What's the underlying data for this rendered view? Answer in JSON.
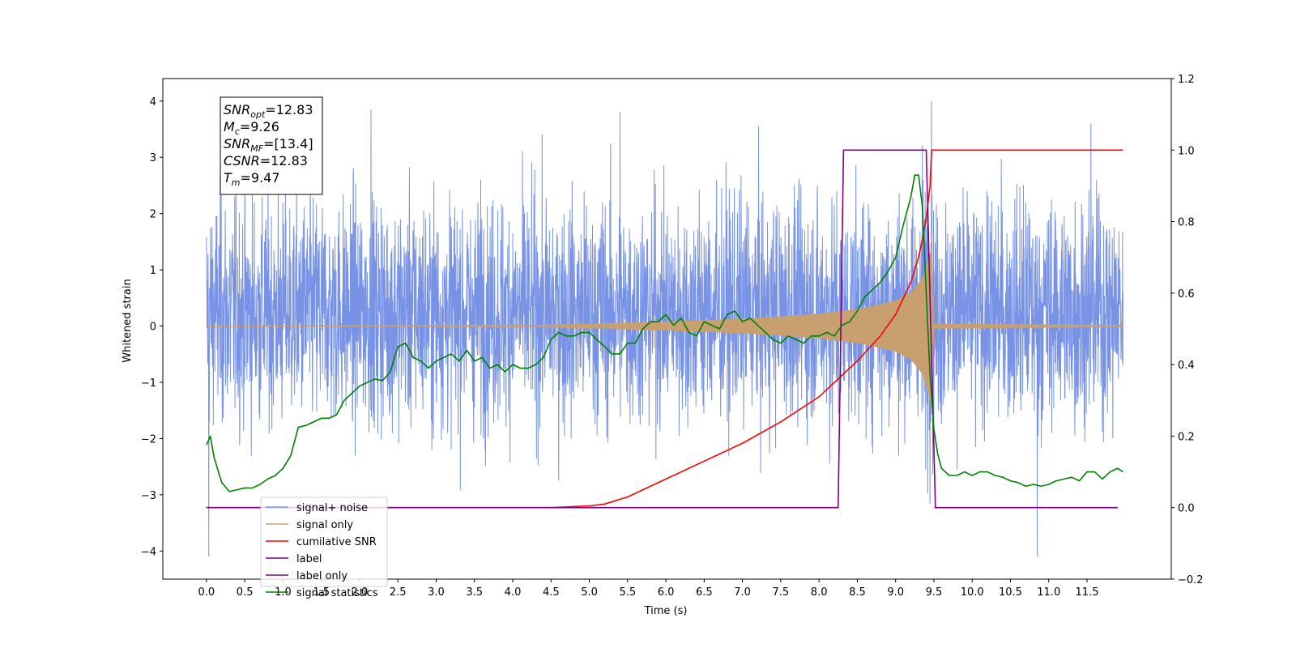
{
  "chart_data": {
    "type": "line",
    "xlabel": "Time (s)",
    "ylabel": "Whitened strain",
    "xlim": [
      -0.57,
      12.6
    ],
    "ylim": [
      -4.5,
      4.4
    ],
    "y2lim": [
      -0.2,
      1.2
    ],
    "x_ticks": [
      0.0,
      0.5,
      1.0,
      1.5,
      2.0,
      2.5,
      3.0,
      3.5,
      4.0,
      4.5,
      5.0,
      5.5,
      6.0,
      6.5,
      7.0,
      7.5,
      8.0,
      8.5,
      9.0,
      9.5,
      10.0,
      10.5,
      11.0,
      11.5
    ],
    "x_tick_labels": [
      "0.0",
      "0.5",
      "1.0",
      "1.5",
      "2.0",
      "2.5",
      "3.0",
      "3.5",
      "4.0",
      "4.5",
      "5.0",
      "5.5",
      "6.0",
      "6.5",
      "7.0",
      "7.5",
      "8.0",
      "8.5",
      "9.0",
      "9.5",
      "10.0",
      "10.5",
      "11.0",
      "11.5"
    ],
    "y_ticks": [
      -4,
      -3,
      -2,
      -1,
      0,
      1,
      2,
      3,
      4
    ],
    "y_tick_labels": [
      "−4",
      "−3",
      "−2",
      "−1",
      "0",
      "1",
      "2",
      "3",
      "4"
    ],
    "y2_ticks": [
      -0.2,
      0.0,
      0.2,
      0.4,
      0.6,
      0.8,
      1.0,
      1.2
    ],
    "y2_tick_labels": [
      "−0.2",
      "0.0",
      "0.2",
      "0.4",
      "0.6",
      "0.8",
      "1.0",
      "1.2"
    ],
    "grid": false,
    "legend_position": "lower-left",
    "info_box": {
      "lines": [
        {
          "sym": "SNR",
          "sub": "opt",
          "val": "=12.83"
        },
        {
          "sym": "M",
          "sub": "c",
          "val": "=9.26"
        },
        {
          "sym": "SNR",
          "sub": "MF",
          "val": "=[13.4]"
        },
        {
          "sym": "CSNR",
          "sub": "",
          "val": "=12.83"
        },
        {
          "sym": "T",
          "sub": "m",
          "val": "=9.47"
        }
      ]
    },
    "series": [
      {
        "name": "signal+ noise",
        "color": "#7893e6",
        "axis": "left",
        "kind": "noise",
        "x_range": [
          0.0,
          11.97
        ],
        "amplitude_envelope": {
          "x": [
            0.0,
            11.97
          ],
          "y": [
            4.1,
            4.1
          ]
        },
        "extreme_peaks": [
          {
            "x": 0.03,
            "y": -4.1
          },
          {
            "x": 2.15,
            "y": 3.85
          },
          {
            "x": 5.4,
            "y": 3.8
          },
          {
            "x": 9.47,
            "y": 4.0
          },
          {
            "x": 10.85,
            "y": -4.1
          },
          {
            "x": 11.55,
            "y": 3.6
          }
        ]
      },
      {
        "name": "signal only",
        "color": "#c8a070",
        "axis": "left",
        "kind": "chirp",
        "envelope": {
          "x": [
            0.0,
            4.0,
            5.0,
            6.0,
            7.0,
            7.5,
            8.0,
            8.5,
            9.0,
            9.2,
            9.35,
            9.45,
            9.47,
            9.5,
            11.97
          ],
          "y": [
            0.0,
            0.01,
            0.04,
            0.08,
            0.13,
            0.17,
            0.22,
            0.3,
            0.45,
            0.6,
            0.85,
            1.3,
            1.65,
            0.04,
            0.02
          ]
        }
      },
      {
        "name": "cumilative SNR",
        "color": "#ff0000",
        "axis": "right",
        "x": [
          0.0,
          4.5,
          5.0,
          5.2,
          5.5,
          6.0,
          6.5,
          7.0,
          7.5,
          8.0,
          8.3,
          8.5,
          8.8,
          9.0,
          9.2,
          9.3,
          9.35,
          9.4,
          9.45,
          9.47,
          9.5,
          11.97
        ],
        "y": [
          0.0,
          0.0,
          0.005,
          0.01,
          0.03,
          0.08,
          0.13,
          0.18,
          0.24,
          0.31,
          0.37,
          0.41,
          0.48,
          0.54,
          0.63,
          0.7,
          0.75,
          0.81,
          0.9,
          1.0,
          1.0,
          1.0
        ]
      },
      {
        "name": "label",
        "color": "#800080",
        "axis": "right",
        "x": [
          0.0,
          8.25,
          8.32,
          9.4,
          9.52,
          11.9
        ],
        "y": [
          0.0,
          0.0,
          1.0,
          1.0,
          0.0,
          0.0
        ]
      },
      {
        "name": "label only",
        "color": "#800080",
        "axis": "right",
        "legend_only": true
      },
      {
        "name": "signal statistics",
        "color": "#008000",
        "axis": "right",
        "x": [
          0.0,
          0.05,
          0.1,
          0.2,
          0.3,
          0.4,
          0.5,
          0.6,
          0.7,
          0.8,
          0.9,
          1.0,
          1.1,
          1.2,
          1.3,
          1.4,
          1.5,
          1.6,
          1.7,
          1.8,
          1.9,
          2.0,
          2.1,
          2.2,
          2.3,
          2.4,
          2.5,
          2.6,
          2.7,
          2.8,
          2.9,
          3.0,
          3.1,
          3.2,
          3.3,
          3.4,
          3.5,
          3.6,
          3.7,
          3.8,
          3.9,
          4.0,
          4.1,
          4.2,
          4.3,
          4.4,
          4.5,
          4.6,
          4.7,
          4.8,
          4.9,
          5.0,
          5.1,
          5.2,
          5.3,
          5.4,
          5.5,
          5.6,
          5.7,
          5.8,
          5.9,
          6.0,
          6.1,
          6.2,
          6.3,
          6.4,
          6.5,
          6.6,
          6.7,
          6.8,
          6.9,
          7.0,
          7.1,
          7.2,
          7.3,
          7.4,
          7.5,
          7.6,
          7.7,
          7.8,
          7.9,
          8.0,
          8.1,
          8.2,
          8.3,
          8.4,
          8.5,
          8.6,
          8.7,
          8.8,
          8.9,
          9.0,
          9.1,
          9.2,
          9.25,
          9.3,
          9.35,
          9.4,
          9.45,
          9.5,
          9.55,
          9.6,
          9.7,
          9.8,
          9.9,
          10.0,
          10.1,
          10.2,
          10.3,
          10.4,
          10.5,
          10.6,
          10.7,
          10.8,
          10.9,
          11.0,
          11.1,
          11.2,
          11.3,
          11.4,
          11.5,
          11.6,
          11.7,
          11.8,
          11.9,
          11.97
        ],
        "y": [
          0.175,
          0.2,
          0.14,
          0.07,
          0.045,
          0.05,
          0.055,
          0.055,
          0.065,
          0.08,
          0.09,
          0.11,
          0.145,
          0.225,
          0.23,
          0.24,
          0.25,
          0.25,
          0.26,
          0.3,
          0.32,
          0.34,
          0.35,
          0.36,
          0.355,
          0.38,
          0.45,
          0.46,
          0.42,
          0.41,
          0.39,
          0.41,
          0.42,
          0.43,
          0.41,
          0.44,
          0.41,
          0.42,
          0.39,
          0.4,
          0.38,
          0.4,
          0.39,
          0.39,
          0.4,
          0.42,
          0.47,
          0.49,
          0.48,
          0.48,
          0.49,
          0.49,
          0.47,
          0.45,
          0.43,
          0.43,
          0.46,
          0.46,
          0.5,
          0.52,
          0.52,
          0.54,
          0.51,
          0.53,
          0.49,
          0.48,
          0.52,
          0.51,
          0.5,
          0.54,
          0.55,
          0.52,
          0.53,
          0.51,
          0.49,
          0.47,
          0.46,
          0.48,
          0.47,
          0.46,
          0.48,
          0.48,
          0.49,
          0.48,
          0.51,
          0.52,
          0.55,
          0.59,
          0.61,
          0.63,
          0.66,
          0.7,
          0.79,
          0.87,
          0.93,
          0.93,
          0.84,
          0.6,
          0.37,
          0.22,
          0.15,
          0.11,
          0.09,
          0.09,
          0.1,
          0.09,
          0.1,
          0.1,
          0.09,
          0.085,
          0.075,
          0.07,
          0.06,
          0.065,
          0.06,
          0.065,
          0.075,
          0.08,
          0.085,
          0.075,
          0.1,
          0.1,
          0.08,
          0.1,
          0.11,
          0.1
        ]
      }
    ]
  }
}
